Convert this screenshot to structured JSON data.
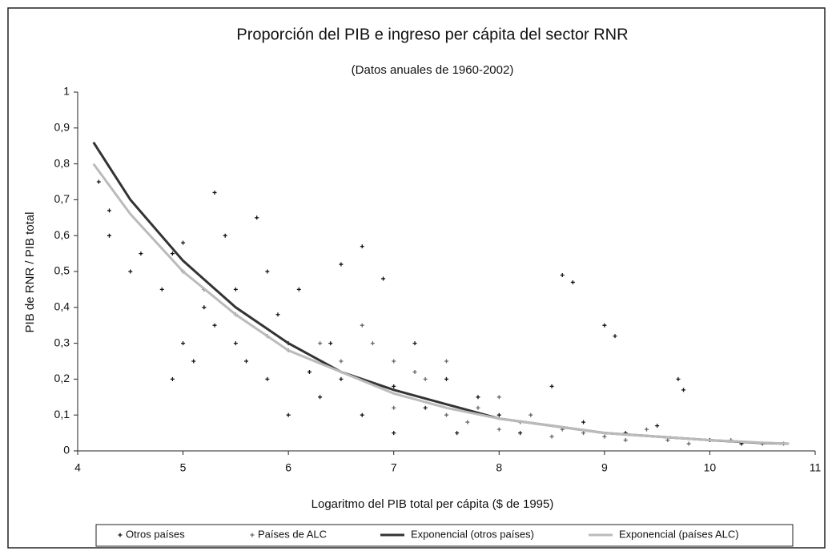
{
  "chart_data": {
    "type": "scatter",
    "title": "Proporción del PIB e ingreso per cápita del sector RNR",
    "subtitle": "(Datos anuales de 1960-2002)",
    "y_label": "PIB de RNR / PIB total",
    "x_label": "Logaritmo del PIB total per cápita ($ de 1995)",
    "xlim": [
      4,
      11
    ],
    "xticks": [
      4,
      5,
      6,
      7,
      8,
      9,
      10,
      11
    ],
    "ylim": [
      0,
      1
    ],
    "yticks": [
      0,
      {
        "value": 0.1,
        "label": "0,1"
      },
      {
        "value": 0.2,
        "label": "0,2"
      },
      {
        "value": 0.3,
        "label": "0,3"
      },
      {
        "value": 0.4,
        "label": "0,4"
      },
      {
        "value": 0.5,
        "label": "0,5"
      },
      {
        "value": 0.6,
        "label": "0,6"
      },
      {
        "value": 0.7,
        "label": "0,7"
      },
      {
        "value": 0.8,
        "label": "0,8"
      },
      {
        "value": 0.9,
        "label": "0,9"
      },
      1
    ],
    "legend": "bottom",
    "series": [
      {
        "name": "Otros países",
        "kind": "scatter",
        "color": "#111111",
        "x": [
          4.2,
          4.3,
          4.3,
          4.5,
          4.6,
          4.8,
          4.9,
          5.0,
          5.0,
          4.9,
          5.1,
          5.2,
          5.3,
          5.3,
          5.4,
          5.5,
          5.5,
          5.6,
          5.7,
          5.8,
          5.8,
          5.9,
          6.0,
          6.0,
          6.1,
          6.2,
          6.3,
          6.4,
          6.5,
          6.5,
          6.7,
          6.7,
          6.9,
          7.0,
          7.0,
          7.2,
          7.3,
          7.5,
          7.6,
          7.8,
          8.0,
          8.2,
          8.5,
          8.6,
          8.7,
          8.8,
          9.0,
          9.1,
          9.2,
          9.5,
          9.7,
          9.75,
          10.0,
          10.3,
          10.5
        ],
        "values": [
          0.75,
          0.6,
          0.67,
          0.5,
          0.55,
          0.45,
          0.55,
          0.58,
          0.3,
          0.2,
          0.25,
          0.4,
          0.72,
          0.35,
          0.6,
          0.45,
          0.3,
          0.25,
          0.65,
          0.5,
          0.2,
          0.38,
          0.3,
          0.1,
          0.45,
          0.22,
          0.15,
          0.3,
          0.52,
          0.2,
          0.57,
          0.1,
          0.48,
          0.18,
          0.05,
          0.3,
          0.12,
          0.2,
          0.05,
          0.15,
          0.1,
          0.05,
          0.18,
          0.49,
          0.47,
          0.08,
          0.35,
          0.32,
          0.05,
          0.07,
          0.2,
          0.17,
          0.03,
          0.02,
          0.02
        ]
      },
      {
        "name": "Países de ALC",
        "kind": "scatter",
        "color": "#666666",
        "x": [
          5.0,
          5.2,
          5.5,
          5.8,
          6.0,
          6.3,
          6.5,
          6.7,
          6.8,
          7.0,
          7.0,
          7.2,
          7.3,
          7.5,
          7.5,
          7.7,
          7.8,
          8.0,
          8.0,
          8.2,
          8.3,
          8.5,
          8.6,
          8.8,
          9.0,
          9.2,
          9.4,
          9.6,
          9.8,
          10.2,
          10.5,
          10.7
        ],
        "values": [
          0.5,
          0.45,
          0.38,
          0.32,
          0.28,
          0.3,
          0.25,
          0.35,
          0.3,
          0.25,
          0.12,
          0.22,
          0.2,
          0.1,
          0.25,
          0.08,
          0.12,
          0.15,
          0.06,
          0.08,
          0.1,
          0.04,
          0.06,
          0.05,
          0.04,
          0.03,
          0.06,
          0.03,
          0.02,
          0.03,
          0.02,
          0.02
        ]
      },
      {
        "name": "Exponencial (otros países)",
        "kind": "line",
        "color": "#333333",
        "x": [
          4.15,
          4.5,
          5,
          5.5,
          6,
          6.5,
          7,
          7.5,
          8,
          8.5,
          9,
          9.5,
          10,
          10.5,
          10.75
        ],
        "values": [
          0.86,
          0.7,
          0.53,
          0.4,
          0.3,
          0.22,
          0.17,
          0.13,
          0.09,
          0.07,
          0.05,
          0.04,
          0.03,
          0.022,
          0.02
        ]
      },
      {
        "name": "Exponencial (países ALC)",
        "kind": "line",
        "color": "#bbbbbb",
        "x": [
          4.15,
          4.5,
          5,
          5.5,
          6,
          6.5,
          7,
          7.5,
          8,
          8.5,
          9,
          9.5,
          10,
          10.5,
          10.75
        ],
        "values": [
          0.8,
          0.66,
          0.5,
          0.38,
          0.28,
          0.22,
          0.16,
          0.12,
          0.09,
          0.07,
          0.05,
          0.04,
          0.03,
          0.023,
          0.02
        ]
      }
    ]
  }
}
